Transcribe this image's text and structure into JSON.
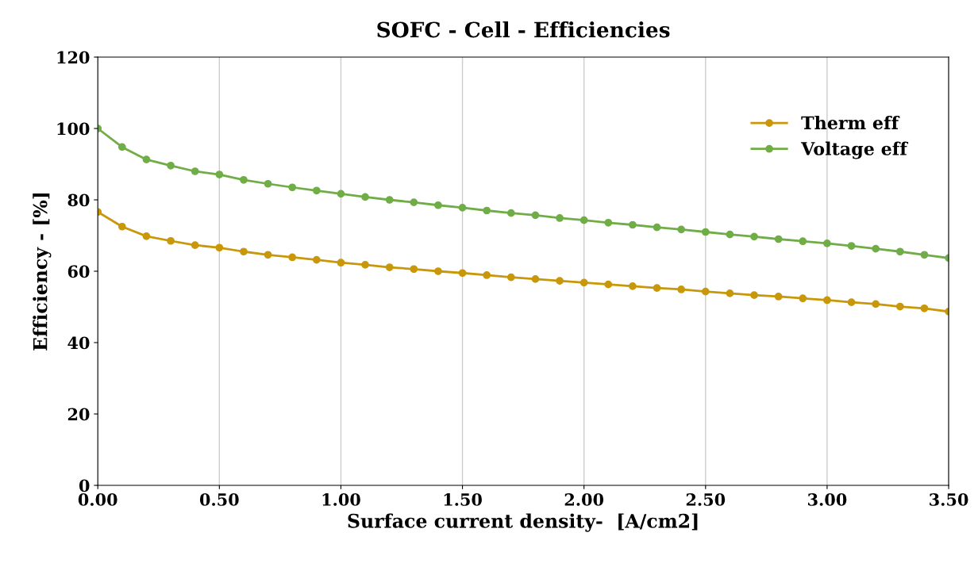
{
  "chart_data": {
    "type": "line",
    "title": "SOFC - Cell - Efficiencies",
    "xlabel": "Surface current density-  [A/cm2]",
    "ylabel": "Efficiency - [%]",
    "x": [
      0,
      0.1,
      0.2,
      0.3,
      0.4,
      0.5,
      0.6,
      0.7,
      0.8,
      0.9,
      1.0,
      1.1,
      1.2,
      1.3,
      1.4,
      1.5,
      1.6,
      1.7,
      1.8,
      1.9,
      2.0,
      2.1,
      2.2,
      2.3,
      2.4,
      2.5,
      2.6,
      2.7,
      2.8,
      2.9,
      3.0,
      3.1,
      3.2,
      3.3,
      3.4,
      3.5
    ],
    "series": [
      {
        "name": "Therm eff",
        "color": "#c8980a",
        "values": [
          76.6,
          72.5,
          69.8,
          68.5,
          67.3,
          66.6,
          65.5,
          64.6,
          63.9,
          63.2,
          62.4,
          61.8,
          61.1,
          60.6,
          60.0,
          59.5,
          58.9,
          58.3,
          57.8,
          57.3,
          56.8,
          56.3,
          55.8,
          55.3,
          54.9,
          54.3,
          53.8,
          53.3,
          52.9,
          52.4,
          51.9,
          51.3,
          50.8,
          50.1,
          49.6,
          48.7
        ]
      },
      {
        "name": "Voltage eff",
        "color": "#70ad47",
        "values": [
          100,
          94.8,
          91.3,
          89.6,
          88.0,
          87.1,
          85.6,
          84.5,
          83.5,
          82.6,
          81.7,
          80.8,
          80.0,
          79.3,
          78.5,
          77.8,
          77.0,
          76.3,
          75.7,
          74.9,
          74.3,
          73.6,
          73.0,
          72.3,
          71.7,
          71.0,
          70.3,
          69.7,
          69.0,
          68.4,
          67.8,
          67.1,
          66.3,
          65.5,
          64.6,
          63.7
        ]
      }
    ],
    "xlim": [
      0,
      3.5
    ],
    "xticks": [
      {
        "value": 0,
        "label": "0.00"
      },
      {
        "value": 0.5,
        "label": "0.50"
      },
      {
        "value": 1,
        "label": "1.00"
      },
      {
        "value": 1.5,
        "label": "1.50"
      },
      {
        "value": 2,
        "label": "2.00"
      },
      {
        "value": 2.5,
        "label": "2.50"
      },
      {
        "value": 3,
        "label": "3.00"
      },
      {
        "value": 3.5,
        "label": "3.50"
      }
    ],
    "ylim": [
      0,
      120
    ],
    "yticks": [
      0,
      20,
      40,
      60,
      80,
      100,
      120
    ],
    "grid": "x",
    "legend": "top right",
    "marker": "circle",
    "line_style": "solid"
  }
}
